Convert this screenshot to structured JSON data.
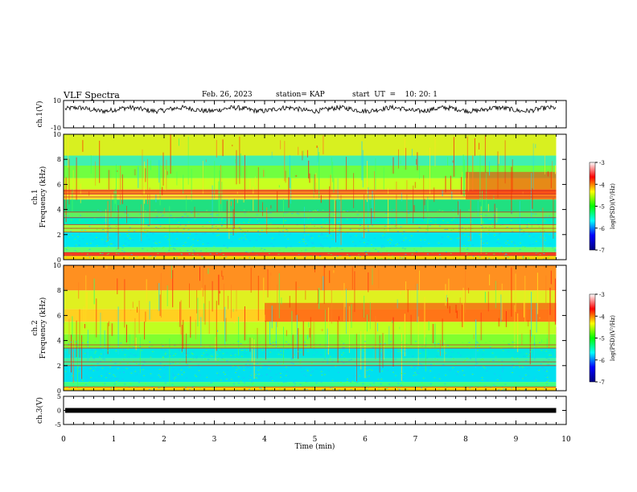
{
  "header": {
    "title": "VLF Spectra",
    "date": "Feb. 26, 2023",
    "station": "station= KAP",
    "start": "start  UT  =    10: 20: 1"
  },
  "chart_data": [
    {
      "type": "line",
      "name": "ch1-waveform",
      "ylabel": "ch.1(V)",
      "ylim": [
        -10,
        10
      ],
      "yticks": [
        "10",
        "-10"
      ],
      "xlim": [
        0,
        10
      ],
      "data_end": 9.8,
      "level": 3.5,
      "amplitude": 3
    },
    {
      "type": "heatmap",
      "name": "ch1-spectrogram",
      "ylabel": "ch.1\nFrequency  (kHz)",
      "ylim": [
        0,
        10
      ],
      "yticks": [
        "0",
        "2",
        "4",
        "6",
        "8",
        "10"
      ],
      "xlim": [
        0,
        10
      ],
      "bands": [
        {
          "from": 0.0,
          "to": 0.3,
          "color": "#ffd200"
        },
        {
          "from": 0.3,
          "to": 0.6,
          "color": "#ff4020"
        },
        {
          "from": 0.6,
          "to": 1.0,
          "color": "#60ff70"
        },
        {
          "from": 1.0,
          "to": 2.2,
          "color": "#00e8f0"
        },
        {
          "from": 2.2,
          "to": 2.8,
          "color": "#a0ff40"
        },
        {
          "from": 2.8,
          "to": 3.4,
          "color": "#00f0c0"
        },
        {
          "from": 3.4,
          "to": 3.8,
          "color": "#60f060"
        },
        {
          "from": 3.8,
          "to": 4.8,
          "color": "#20e080"
        },
        {
          "from": 4.8,
          "to": 5.2,
          "color": "#ffe030"
        },
        {
          "from": 5.2,
          "to": 5.6,
          "color": "#ff8020"
        },
        {
          "from": 5.6,
          "to": 6.5,
          "color": "#c8ff20"
        },
        {
          "from": 6.5,
          "to": 7.5,
          "color": "#70ff40"
        },
        {
          "from": 7.5,
          "to": 8.3,
          "color": "#40f0b0"
        },
        {
          "from": 8.3,
          "to": 10.0,
          "color": "#d8f020"
        }
      ],
      "lines_khz": [
        0.35,
        0.55,
        2.2,
        2.5,
        2.8,
        3.35,
        3.8,
        5.0,
        5.25,
        5.5
      ],
      "hotspot": {
        "x_from": 8.0,
        "x_to": 9.8,
        "f_from": 4.8,
        "f_to": 7.0,
        "color": "#ff2a10"
      }
    },
    {
      "type": "heatmap",
      "name": "ch2-spectrogram",
      "ylabel": "ch.2\nFrequency  (kHz)",
      "ylim": [
        0,
        10
      ],
      "yticks": [
        "0",
        "2",
        "4",
        "6",
        "8",
        "10"
      ],
      "xlim": [
        0,
        10
      ],
      "bands": [
        {
          "from": 0.0,
          "to": 0.3,
          "color": "#ffd200"
        },
        {
          "from": 0.3,
          "to": 0.7,
          "color": "#40ff80"
        },
        {
          "from": 0.7,
          "to": 2.0,
          "color": "#00e0f0"
        },
        {
          "from": 2.0,
          "to": 2.6,
          "color": "#40f0a0"
        },
        {
          "from": 2.6,
          "to": 3.4,
          "color": "#00e8e0"
        },
        {
          "from": 3.4,
          "to": 4.5,
          "color": "#80ff30"
        },
        {
          "from": 4.5,
          "to": 5.5,
          "color": "#c0ff20"
        },
        {
          "from": 5.5,
          "to": 6.5,
          "color": "#ffd020"
        },
        {
          "from": 6.5,
          "to": 8.0,
          "color": "#e0f020"
        },
        {
          "from": 8.0,
          "to": 10.0,
          "color": "#ff9020"
        }
      ],
      "lines_khz": [
        0.3,
        2.0,
        2.3,
        3.4,
        3.65
      ],
      "hotspot": {
        "x_from": 4.0,
        "x_to": 9.8,
        "f_from": 5.5,
        "f_to": 7.0,
        "color": "#ff2a10"
      }
    },
    {
      "type": "line",
      "name": "ch3-waveform",
      "ylabel": "ch.3(V)",
      "ylim": [
        -5,
        5
      ],
      "yticks": [
        "5",
        "0",
        "-5"
      ],
      "xlim": [
        0,
        10
      ],
      "data_end": 9.8,
      "level": 0,
      "amplitude": 0.4
    }
  ],
  "x_axis": {
    "xlabel": "Time  (min)",
    "xlim": [
      0,
      10
    ],
    "ticks": [
      "0",
      "1",
      "2",
      "3",
      "4",
      "5",
      "6",
      "7",
      "8",
      "9",
      "10"
    ]
  },
  "colorbar": {
    "label": "log(PSD)(V²/Hz)",
    "range": [
      -7,
      -3
    ],
    "ticks": [
      "-3",
      "-4",
      "-5",
      "-6",
      "-7"
    ],
    "stops": [
      "#000080",
      "#0000ff",
      "#00ffff",
      "#00ff00",
      "#ffff00",
      "#ff0000",
      "#ffffff"
    ]
  },
  "colors": {
    "frame": "#000000",
    "trace": "#000000"
  }
}
